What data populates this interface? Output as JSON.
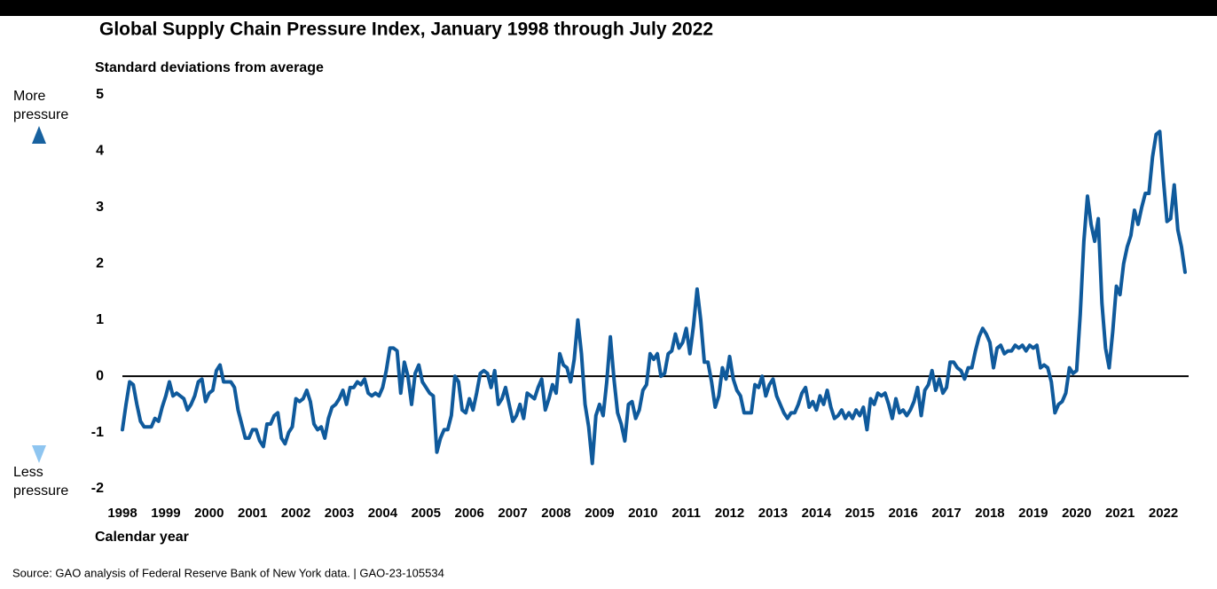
{
  "chart_data": {
    "type": "line",
    "title": "Global Supply Chain Pressure Index, January 1998 through July 2022",
    "y_label": "Standard deviations from average",
    "x_label": "Calendar year",
    "annotations": {
      "top": "More pressure",
      "bottom": "Less pressure"
    },
    "source": "Source: GAO analysis of Federal Reserve Bank of New York data.  |  GAO-23-105534",
    "color": "#0f5a9c",
    "ylim": [
      -2,
      5
    ],
    "yticks": [
      5,
      4,
      3,
      2,
      1,
      0,
      -1,
      -2
    ],
    "categories": [
      "1998",
      null,
      null,
      null,
      null,
      null,
      null,
      null,
      null,
      null,
      null,
      null,
      "1999",
      null,
      null,
      null,
      null,
      null,
      null,
      null,
      null,
      null,
      null,
      null,
      "2000",
      null,
      null,
      null,
      null,
      null,
      null,
      null,
      null,
      null,
      null,
      null,
      "2001",
      null,
      null,
      null,
      null,
      null,
      null,
      null,
      null,
      null,
      null,
      null,
      "2002",
      null,
      null,
      null,
      null,
      null,
      null,
      null,
      null,
      null,
      null,
      null,
      "2003",
      null,
      null,
      null,
      null,
      null,
      null,
      null,
      null,
      null,
      null,
      null,
      "2004",
      null,
      null,
      null,
      null,
      null,
      null,
      null,
      null,
      null,
      null,
      null,
      "2005",
      null,
      null,
      null,
      null,
      null,
      null,
      null,
      null,
      null,
      null,
      null,
      "2006",
      null,
      null,
      null,
      null,
      null,
      null,
      null,
      null,
      null,
      null,
      null,
      "2007",
      null,
      null,
      null,
      null,
      null,
      null,
      null,
      null,
      null,
      null,
      null,
      "2008",
      null,
      null,
      null,
      null,
      null,
      null,
      null,
      null,
      null,
      null,
      null,
      "2009",
      null,
      null,
      null,
      null,
      null,
      null,
      null,
      null,
      null,
      null,
      null,
      "2010",
      null,
      null,
      null,
      null,
      null,
      null,
      null,
      null,
      null,
      null,
      null,
      "2011",
      null,
      null,
      null,
      null,
      null,
      null,
      null,
      null,
      null,
      null,
      null,
      "2012",
      null,
      null,
      null,
      null,
      null,
      null,
      null,
      null,
      null,
      null,
      null,
      "2013",
      null,
      null,
      null,
      null,
      null,
      null,
      null,
      null,
      null,
      null,
      null,
      "2014",
      null,
      null,
      null,
      null,
      null,
      null,
      null,
      null,
      null,
      null,
      null,
      "2015",
      null,
      null,
      null,
      null,
      null,
      null,
      null,
      null,
      null,
      null,
      null,
      "2016",
      null,
      null,
      null,
      null,
      null,
      null,
      null,
      null,
      null,
      null,
      null,
      "2017",
      null,
      null,
      null,
      null,
      null,
      null,
      null,
      null,
      null,
      null,
      null,
      "2018",
      null,
      null,
      null,
      null,
      null,
      null,
      null,
      null,
      null,
      null,
      null,
      "2019",
      null,
      null,
      null,
      null,
      null,
      null,
      null,
      null,
      null,
      null,
      null,
      "2020",
      null,
      null,
      null,
      null,
      null,
      null,
      null,
      null,
      null,
      null,
      null,
      "2021",
      null,
      null,
      null,
      null,
      null,
      null,
      null,
      null,
      null,
      null,
      null,
      "2022",
      null,
      null,
      null,
      null,
      null,
      null
    ],
    "values": [
      -0.95,
      -0.5,
      -0.1,
      -0.15,
      -0.5,
      -0.8,
      -0.9,
      -0.9,
      -0.9,
      -0.75,
      -0.8,
      -0.55,
      -0.35,
      -0.1,
      -0.35,
      -0.3,
      -0.35,
      -0.4,
      -0.6,
      -0.5,
      -0.35,
      -0.1,
      -0.05,
      -0.45,
      -0.3,
      -0.25,
      0.1,
      0.2,
      -0.1,
      -0.1,
      -0.1,
      -0.2,
      -0.6,
      -0.85,
      -1.1,
      -1.1,
      -0.95,
      -0.95,
      -1.15,
      -1.25,
      -0.85,
      -0.85,
      -0.7,
      -0.65,
      -1.1,
      -1.2,
      -1.0,
      -0.9,
      -0.4,
      -0.45,
      -0.4,
      -0.25,
      -0.45,
      -0.85,
      -0.95,
      -0.9,
      -1.1,
      -0.75,
      -0.55,
      -0.5,
      -0.4,
      -0.25,
      -0.5,
      -0.2,
      -0.2,
      -0.1,
      -0.15,
      -0.05,
      -0.3,
      -0.35,
      -0.3,
      -0.35,
      -0.2,
      0.1,
      0.5,
      0.5,
      0.45,
      -0.3,
      0.25,
      0.0,
      -0.5,
      0.05,
      0.2,
      -0.1,
      -0.2,
      -0.3,
      -0.35,
      -1.35,
      -1.1,
      -0.95,
      -0.95,
      -0.7,
      0.0,
      -0.1,
      -0.6,
      -0.65,
      -0.4,
      -0.6,
      -0.3,
      0.05,
      0.1,
      0.05,
      -0.2,
      0.1,
      -0.5,
      -0.4,
      -0.2,
      -0.5,
      -0.8,
      -0.7,
      -0.5,
      -0.75,
      -0.3,
      -0.35,
      -0.4,
      -0.2,
      -0.05,
      -0.6,
      -0.4,
      -0.15,
      -0.3,
      0.4,
      0.2,
      0.15,
      -0.1,
      0.3,
      1.0,
      0.4,
      -0.5,
      -0.9,
      -1.55,
      -0.7,
      -0.5,
      -0.7,
      -0.1,
      0.7,
      -0.05,
      -0.65,
      -0.85,
      -1.15,
      -0.5,
      -0.45,
      -0.75,
      -0.6,
      -0.25,
      -0.15,
      0.4,
      0.3,
      0.4,
      0.0,
      0.05,
      0.4,
      0.45,
      0.75,
      0.5,
      0.6,
      0.85,
      0.4,
      0.9,
      1.55,
      1.0,
      0.25,
      0.25,
      -0.1,
      -0.55,
      -0.35,
      0.15,
      -0.05,
      0.35,
      -0.05,
      -0.25,
      -0.35,
      -0.65,
      -0.65,
      -0.65,
      -0.15,
      -0.2,
      0.0,
      -0.35,
      -0.15,
      -0.05,
      -0.35,
      -0.5,
      -0.65,
      -0.75,
      -0.65,
      -0.65,
      -0.5,
      -0.3,
      -0.2,
      -0.55,
      -0.45,
      -0.6,
      -0.35,
      -0.5,
      -0.25,
      -0.55,
      -0.75,
      -0.7,
      -0.6,
      -0.75,
      -0.65,
      -0.75,
      -0.6,
      -0.7,
      -0.55,
      -0.95,
      -0.4,
      -0.5,
      -0.3,
      -0.35,
      -0.3,
      -0.5,
      -0.75,
      -0.4,
      -0.65,
      -0.6,
      -0.7,
      -0.6,
      -0.45,
      -0.2,
      -0.7,
      -0.25,
      -0.15,
      0.1,
      -0.25,
      -0.05,
      -0.3,
      -0.2,
      0.25,
      0.25,
      0.15,
      0.1,
      -0.05,
      0.15,
      0.15,
      0.45,
      0.7,
      0.85,
      0.75,
      0.6,
      0.15,
      0.5,
      0.55,
      0.4,
      0.45,
      0.45,
      0.55,
      0.5,
      0.55,
      0.45,
      0.55,
      0.5,
      0.55,
      0.15,
      0.2,
      0.15,
      -0.1,
      -0.65,
      -0.5,
      -0.45,
      -0.3,
      0.15,
      0.05,
      0.1,
      1.1,
      2.4,
      3.2,
      2.7,
      2.4,
      2.8,
      1.3,
      0.5,
      0.15,
      0.8,
      1.6,
      1.45,
      2.0,
      2.3,
      2.5,
      2.95,
      2.7,
      3.0,
      3.25,
      3.25,
      3.9,
      4.3,
      4.35,
      3.5,
      2.75,
      2.8,
      3.4,
      2.6,
      2.3,
      1.85
    ]
  }
}
